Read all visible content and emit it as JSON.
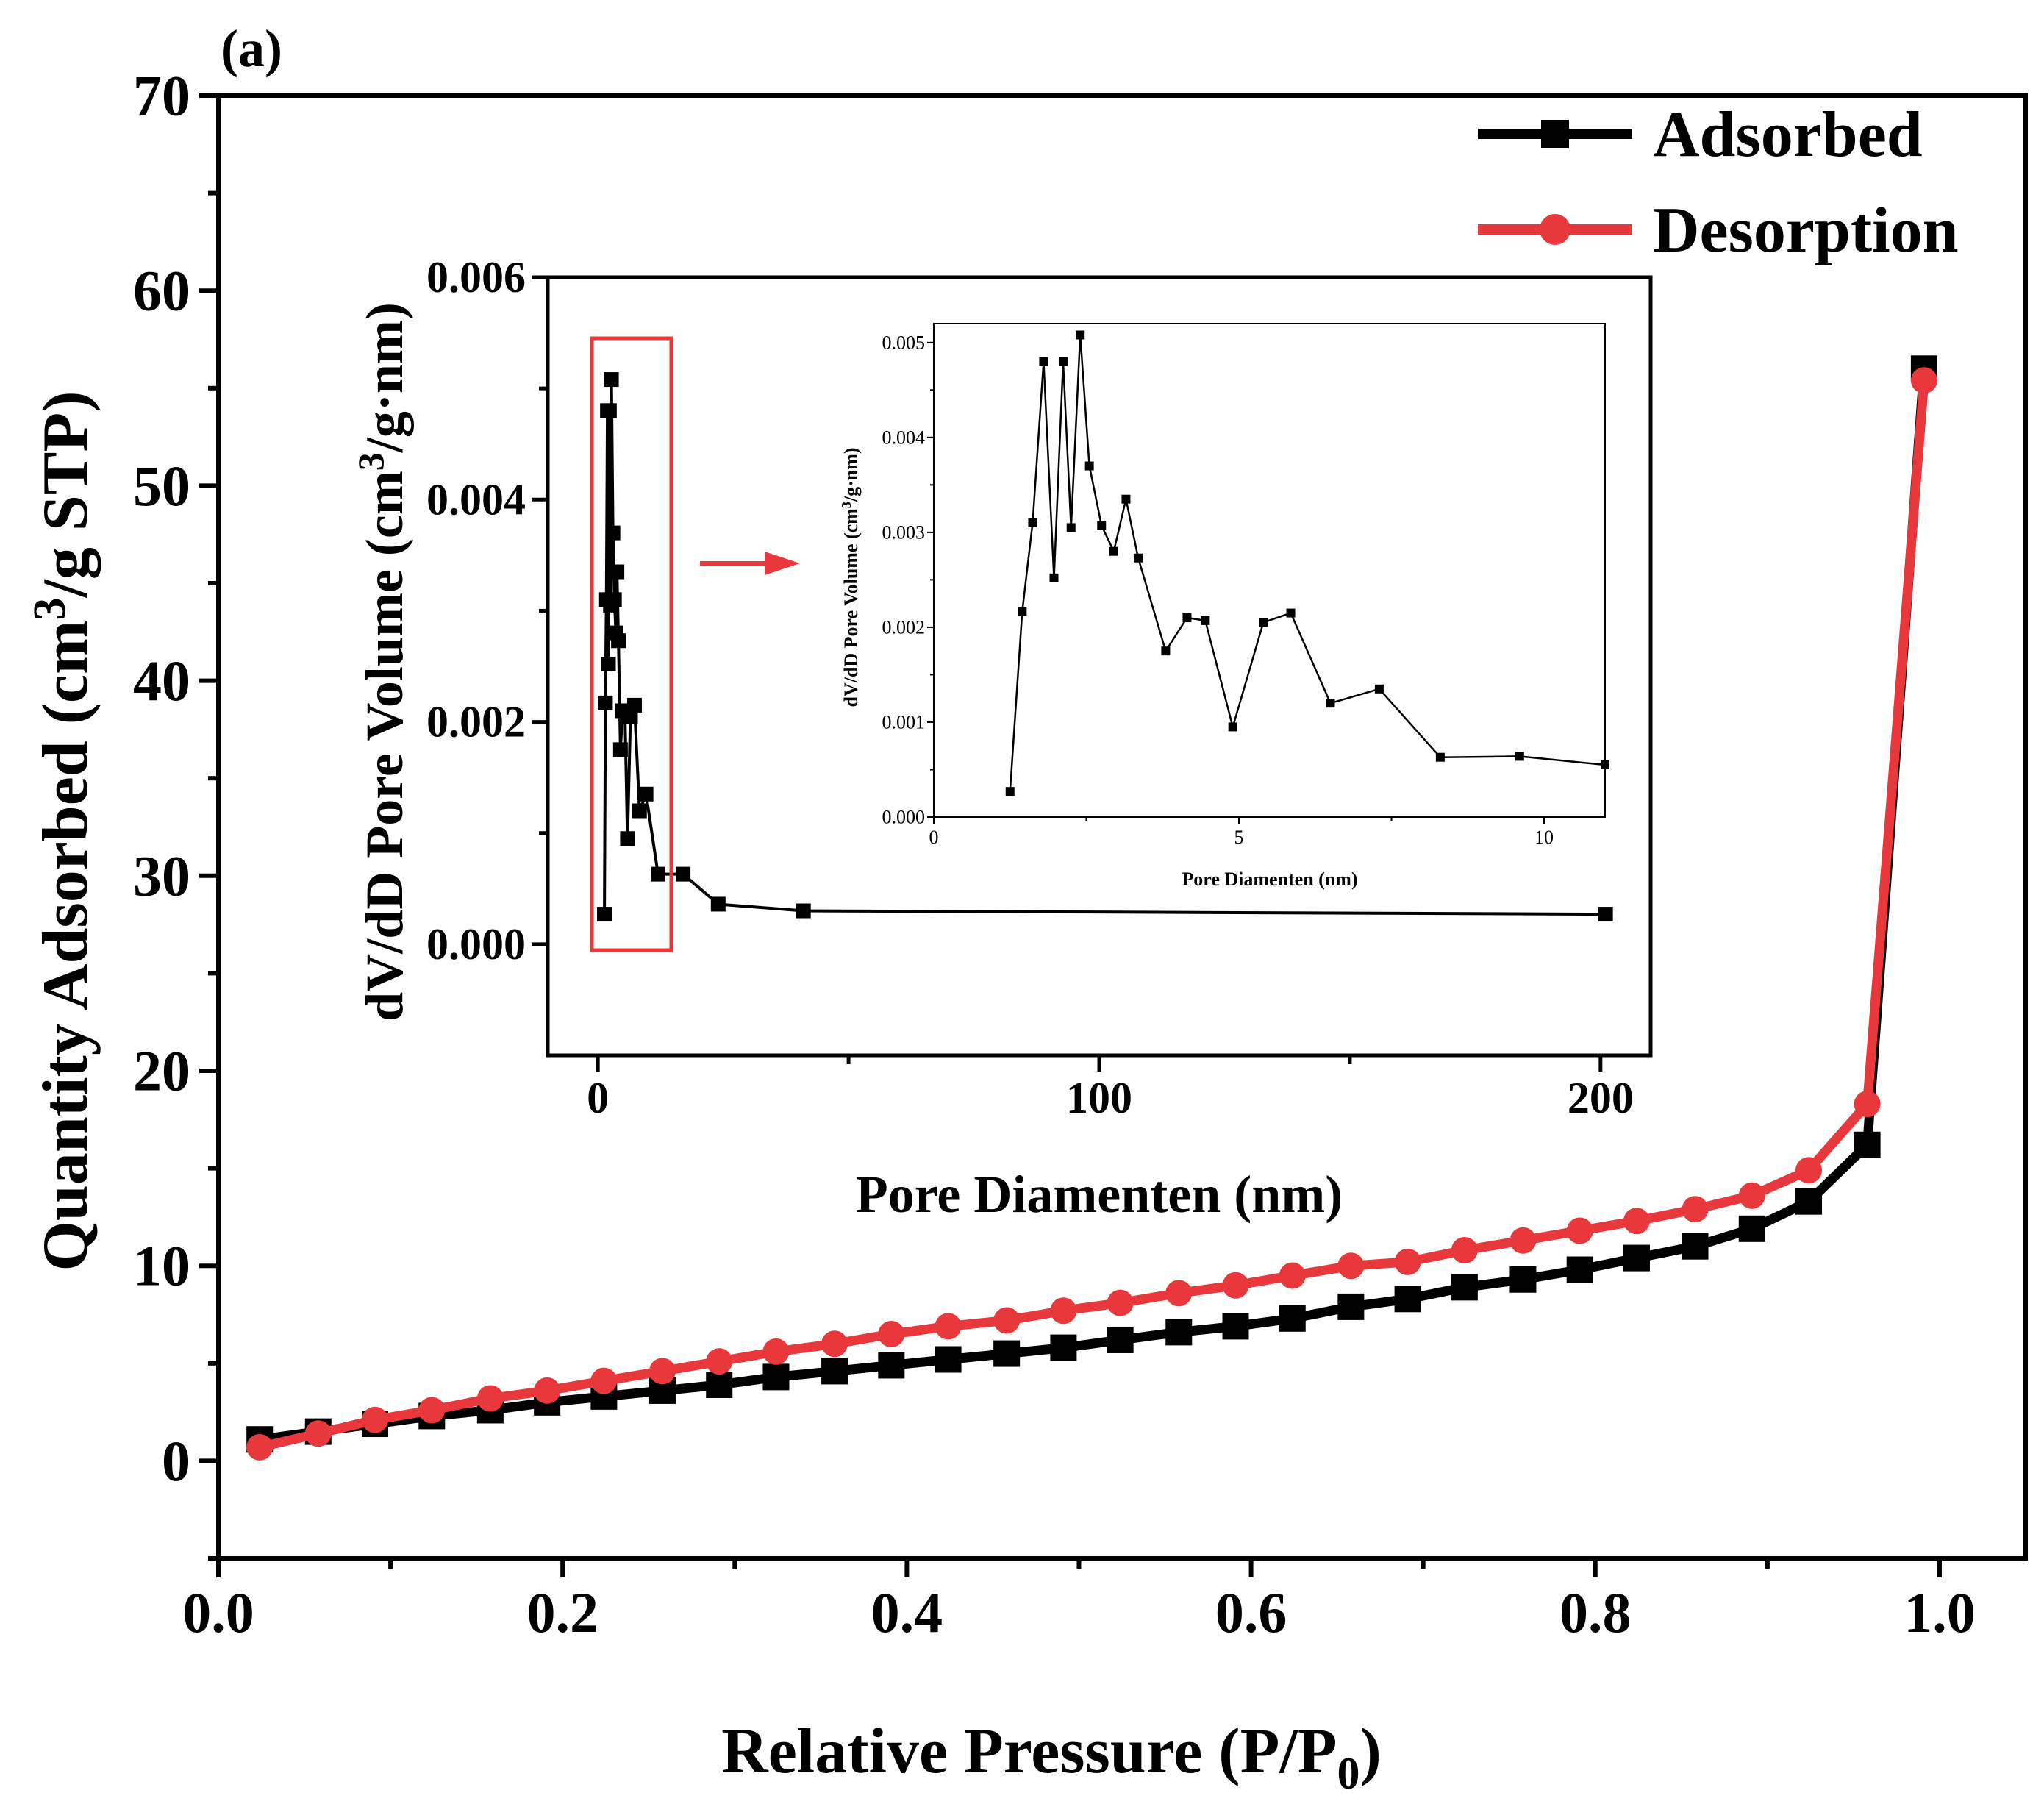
{
  "panel_label": "(a)",
  "colors": {
    "adsorbed": "#000000",
    "desorption": "#e8383b",
    "zoom_box": "#e8383b"
  },
  "chart_data": [
    {
      "id": "isotherm",
      "type": "line",
      "xlabel": "Relative Pressure (P/P",
      "xlabel_sub": "0",
      "xlabel_end": ")",
      "ylabel": "Quantity Adsorbed (cm",
      "ylabel_sup": "3",
      "ylabel_end": "/g STP)",
      "xlim": [
        0.0,
        1.05
      ],
      "ylim": [
        -5,
        70
      ],
      "xticks": [
        0.0,
        0.2,
        0.4,
        0.6,
        0.8,
        1.0
      ],
      "xtick_labels": [
        "0.0",
        "0.2",
        "0.4",
        "0.6",
        "0.8",
        "1.0"
      ],
      "yticks": [
        0,
        10,
        20,
        30,
        40,
        50,
        60,
        70
      ],
      "ytick_labels": [
        "0",
        "10",
        "20",
        "30",
        "40",
        "50",
        "60",
        "70"
      ],
      "legend_position": "top-right",
      "series": [
        {
          "name": "Adsorbed",
          "marker": "square",
          "x": [
            0.024,
            0.058,
            0.091,
            0.124,
            0.158,
            0.191,
            0.224,
            0.258,
            0.291,
            0.324,
            0.358,
            0.391,
            0.424,
            0.458,
            0.491,
            0.524,
            0.558,
            0.591,
            0.624,
            0.658,
            0.691,
            0.724,
            0.758,
            0.791,
            0.824,
            0.858,
            0.891,
            0.924,
            0.958,
            0.991
          ],
          "y": [
            1.1,
            1.5,
            1.9,
            2.3,
            2.6,
            3.0,
            3.3,
            3.6,
            3.9,
            4.3,
            4.6,
            4.9,
            5.2,
            5.5,
            5.8,
            6.2,
            6.6,
            6.9,
            7.3,
            7.9,
            8.3,
            8.9,
            9.3,
            9.8,
            10.4,
            11.0,
            11.9,
            13.3,
            16.2,
            56.0
          ]
        },
        {
          "name": "Desorption",
          "marker": "circle",
          "x": [
            0.024,
            0.058,
            0.091,
            0.124,
            0.158,
            0.191,
            0.224,
            0.258,
            0.291,
            0.324,
            0.358,
            0.391,
            0.424,
            0.458,
            0.491,
            0.524,
            0.558,
            0.591,
            0.624,
            0.658,
            0.691,
            0.724,
            0.758,
            0.791,
            0.824,
            0.858,
            0.891,
            0.924,
            0.958,
            0.991
          ],
          "y": [
            0.7,
            1.4,
            2.1,
            2.6,
            3.2,
            3.6,
            4.1,
            4.6,
            5.1,
            5.6,
            6.0,
            6.5,
            6.9,
            7.2,
            7.7,
            8.1,
            8.6,
            9.0,
            9.5,
            10.0,
            10.2,
            10.8,
            11.3,
            11.8,
            12.3,
            12.9,
            13.6,
            14.9,
            18.3,
            55.4
          ]
        }
      ]
    },
    {
      "id": "psd",
      "type": "line",
      "xlabel": "Pore Diamenten (nm)",
      "ylabel": "dV/dD Pore Volume (cm",
      "ylabel_sup": "3",
      "ylabel_end": "/g·nm)",
      "xlim": [
        -10,
        210
      ],
      "ylim": [
        -0.001,
        0.006
      ],
      "xticks": [
        0,
        100,
        200
      ],
      "xtick_labels": [
        "0",
        "100",
        "200"
      ],
      "yticks": [
        0.0,
        0.002,
        0.004,
        0.006
      ],
      "ytick_labels": [
        "0.000",
        "0.002",
        "0.004",
        "0.006"
      ],
      "annotation": "zoom box over 0–15 nm with arrow pointing to enlarged inset",
      "series": [
        {
          "name": "dV/dD",
          "marker": "square",
          "x": [
            1.3,
            1.5,
            1.7,
            1.9,
            2.1,
            2.3,
            2.5,
            2.7,
            3.0,
            3.3,
            3.6,
            3.8,
            4.1,
            4.5,
            4.9,
            5.4,
            5.9,
            6.5,
            7.3,
            8.3,
            9.6,
            12,
            17,
            24,
            41,
            201
          ],
          "y": [
            0.00027,
            0.00217,
            0.0031,
            0.0048,
            0.00252,
            0.0048,
            0.00305,
            0.00508,
            0.0037,
            0.0031,
            0.0028,
            0.00335,
            0.00273,
            0.00175,
            0.0021,
            0.00207,
            0.00095,
            0.00205,
            0.00215,
            0.0012,
            0.00135,
            0.00063,
            0.00063,
            0.00036,
            0.0003,
            0.00027
          ]
        }
      ]
    },
    {
      "id": "psd_zoom",
      "type": "line",
      "xlabel": "Pore Diamenten (nm)",
      "ylabel": "dV/dD Pore Volume (cm",
      "ylabel_sup": "3",
      "ylabel_end": "/g·nm)",
      "xlim": [
        0,
        11
      ],
      "ylim": [
        0,
        0.0052
      ],
      "xticks": [
        0,
        5,
        10
      ],
      "xtick_labels": [
        "0",
        "5",
        "10"
      ],
      "yticks": [
        0.0,
        0.001,
        0.002,
        0.003,
        0.004,
        0.005
      ],
      "ytick_labels": [
        "0.000",
        "0.001",
        "0.002",
        "0.003",
        "0.004",
        "0.005"
      ],
      "series": [
        {
          "name": "dV/dD",
          "marker": "square",
          "x": [
            1.25,
            1.45,
            1.62,
            1.8,
            1.97,
            2.12,
            2.25,
            2.4,
            2.55,
            2.75,
            2.95,
            3.15,
            3.35,
            3.8,
            4.15,
            4.45,
            4.9,
            5.4,
            5.85,
            6.5,
            7.3,
            8.3,
            9.6,
            11.0
          ],
          "y": [
            0.00027,
            0.00217,
            0.0031,
            0.0048,
            0.00252,
            0.0048,
            0.00305,
            0.00508,
            0.0037,
            0.00307,
            0.0028,
            0.00335,
            0.00273,
            0.00175,
            0.0021,
            0.00207,
            0.00095,
            0.00205,
            0.00215,
            0.0012,
            0.00135,
            0.00063,
            0.00064,
            0.00055
          ]
        }
      ]
    }
  ]
}
